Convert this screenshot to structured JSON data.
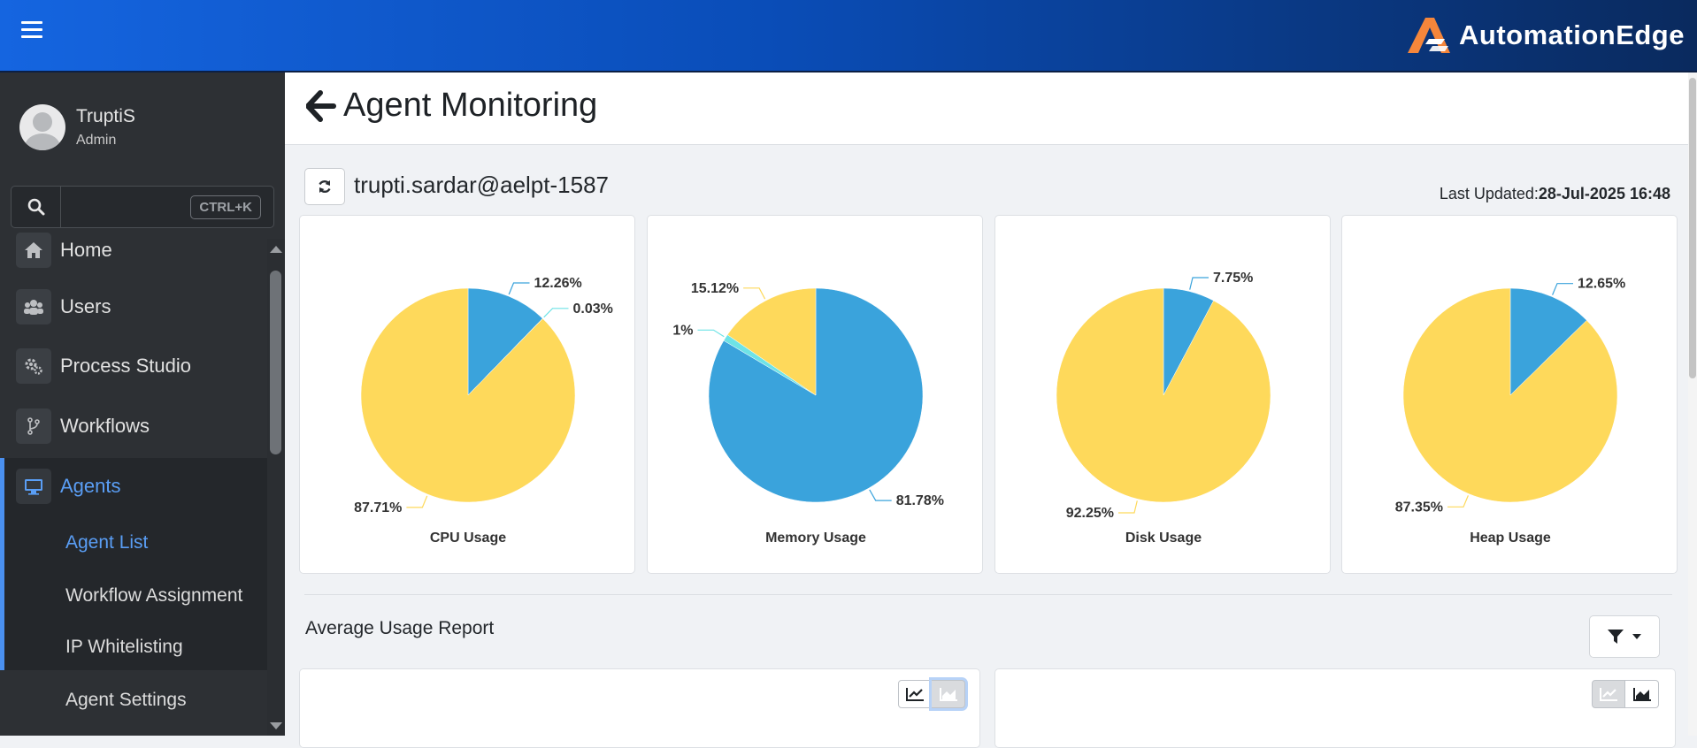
{
  "app": {
    "brand": "AutomationEdge",
    "accent": "#4a90f0"
  },
  "user": {
    "name": "TruptiS",
    "role": "Admin"
  },
  "search": {
    "shortcut": "CTRL+K",
    "placeholder": ""
  },
  "sidebar": {
    "items": [
      {
        "label": "Home",
        "icon": "home-icon"
      },
      {
        "label": "Users",
        "icon": "users-icon"
      },
      {
        "label": "Process Studio",
        "icon": "gears-icon"
      },
      {
        "label": "Workflows",
        "icon": "branch-icon"
      },
      {
        "label": "Agents",
        "icon": "desktop-icon"
      }
    ],
    "subitems": [
      {
        "label": "Agent List"
      },
      {
        "label": "Workflow Assignment"
      },
      {
        "label": "IP Whitelisting"
      },
      {
        "label": "Agent Settings"
      }
    ]
  },
  "page": {
    "title": "Agent Monitoring",
    "agent": "trupti.sardar@aelpt-1587",
    "last_updated_label": "Last Updated:",
    "last_updated_value": "28-Jul-2025 16:48",
    "report_title": "Average Usage Report"
  },
  "colors": {
    "used": "#3aa3dc",
    "free": "#fed95b",
    "other": "#6ee3e6"
  },
  "chart_data": [
    {
      "type": "pie",
      "title": "CPU Usage",
      "slices": [
        {
          "value": 12.26,
          "label": "12.26%",
          "color": "#3aa3dc"
        },
        {
          "value": 0.03,
          "label": "0.03%",
          "color": "#6ee3e6"
        },
        {
          "value": 87.71,
          "label": "87.71%",
          "color": "#fed95b"
        }
      ]
    },
    {
      "type": "pie",
      "title": "Memory Usage",
      "slices": [
        {
          "value": 81.78,
          "label": "81.78%",
          "color": "#3aa3dc"
        },
        {
          "value": 1,
          "label": "1%",
          "color": "#6ee3e6"
        },
        {
          "value": 15.12,
          "label": "15.12%",
          "color": "#fed95b"
        }
      ]
    },
    {
      "type": "pie",
      "title": "Disk Usage",
      "slices": [
        {
          "value": 7.75,
          "label": "7.75%",
          "color": "#3aa3dc"
        },
        {
          "value": 92.25,
          "label": "92.25%",
          "color": "#fed95b"
        }
      ]
    },
    {
      "type": "pie",
      "title": "Heap Usage",
      "slices": [
        {
          "value": 12.65,
          "label": "12.65%",
          "color": "#3aa3dc"
        },
        {
          "value": 87.35,
          "label": "87.35%",
          "color": "#fed95b"
        }
      ]
    }
  ]
}
